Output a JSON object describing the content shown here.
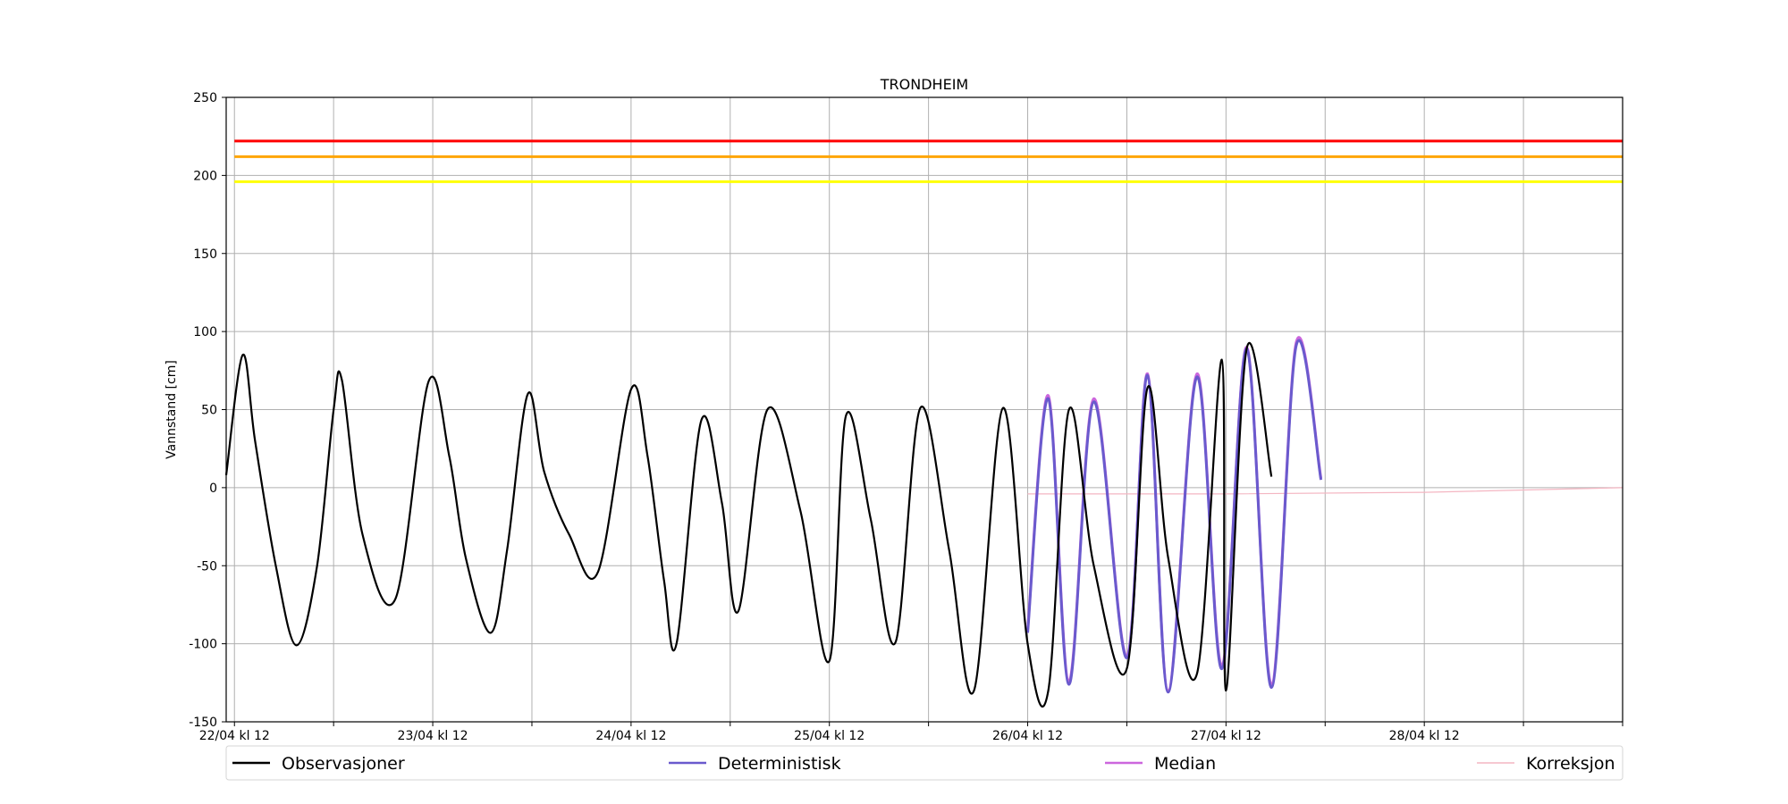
{
  "chart_data": {
    "type": "line",
    "title": "TRONDHEIM",
    "xlabel": "",
    "ylabel": "Vannstand [cm]",
    "ylim": [
      -150,
      250
    ],
    "xlim_hours": [
      -1,
      168
    ],
    "x_tick_labels": [
      "22/04 kl 12",
      "23/04 kl 12",
      "24/04 kl 12",
      "25/04 kl 12",
      "26/04 kl 12",
      "27/04 kl 12",
      "28/04 kl 12"
    ],
    "x_tick_labeled_hours": [
      0,
      24,
      48,
      72,
      96,
      120,
      144
    ],
    "x_tick_hours": [
      0,
      12,
      24,
      36,
      48,
      60,
      72,
      84,
      96,
      108,
      120,
      132,
      144,
      156,
      168
    ],
    "y_ticks": [
      -150,
      -100,
      -50,
      0,
      50,
      100,
      150,
      200,
      250
    ],
    "grid": true,
    "legend_position": "bottom",
    "thresholds": [
      {
        "value": 222,
        "color": "#ff0000"
      },
      {
        "value": 212,
        "color": "#ffa500"
      },
      {
        "value": 196,
        "color": "#ffff00"
      }
    ],
    "series": [
      {
        "name": "Observasjoner",
        "color": "#000000",
        "x": [
          -1,
          1,
          2.5,
          5,
          7.5,
          10,
          12,
          13,
          15.5,
          19.5,
          23.5,
          26,
          28,
          31,
          33,
          35.5,
          37.5,
          40.5,
          44,
          48,
          50,
          52,
          53.5,
          56.5,
          59,
          61,
          64.5,
          68.5,
          72,
          74,
          77,
          80,
          83,
          86.5,
          89.5,
          93,
          96,
          98.5,
          101,
          104,
          108,
          110.5,
          113,
          116.5,
          119.5,
          120,
          122.5,
          125.5,
          128.5,
          131.5,
          134,
          137,
          139.5,
          143,
          143.1,
          144,
          146,
          149.5,
          155.5,
          158,
          161.5,
          165,
          168
        ],
        "values": [
          8,
          85,
          30,
          -50,
          -101,
          -50,
          50,
          69,
          -30,
          -71,
          68,
          20,
          -45,
          -93,
          -40,
          60,
          10,
          -30,
          -54,
          63,
          20,
          -60,
          -100,
          43,
          -10,
          -79,
          50,
          -15,
          -111,
          46,
          -20,
          -99,
          51,
          -40,
          -130,
          51,
          -100,
          -130,
          50,
          -50,
          -116,
          64,
          -45,
          -119,
          82,
          -130,
          89,
          7,
          null,
          null,
          null,
          null,
          null,
          null,
          null,
          null,
          null,
          null,
          null,
          null,
          null,
          null,
          null
        ]
      },
      {
        "name": "Deterministisk",
        "color": "#6a5acd",
        "x": [
          96,
          98.5,
          101,
          104,
          108,
          110.5,
          113,
          116.5,
          119.5,
          122.5,
          125.5,
          128.5,
          131.5,
          134,
          137,
          139.5,
          143,
          146,
          149.5,
          155.5,
          158,
          161.5,
          165,
          168
        ],
        "values": [
          -93,
          57,
          -126,
          55,
          -109,
          72,
          -131,
          71,
          -116,
          89,
          -128,
          91,
          5,
          null,
          null,
          null,
          null,
          null,
          null,
          null,
          null,
          null,
          null,
          null
        ]
      },
      {
        "name": "Median",
        "color": "#cc66dd",
        "x": [
          96,
          98.5,
          101,
          104,
          108,
          110.5,
          113,
          116.5,
          119.5,
          122.5,
          125.5,
          128.5,
          131.5
        ],
        "values": [
          -91,
          59,
          -124,
          57,
          -108,
          73,
          -130,
          73,
          -114,
          90,
          -126,
          93,
          6
        ]
      },
      {
        "name": "Korreksjon",
        "color": "#f4b6c2",
        "x": [
          96,
          120,
          144,
          168
        ],
        "values": [
          -4,
          -4,
          -3,
          0
        ]
      }
    ]
  }
}
